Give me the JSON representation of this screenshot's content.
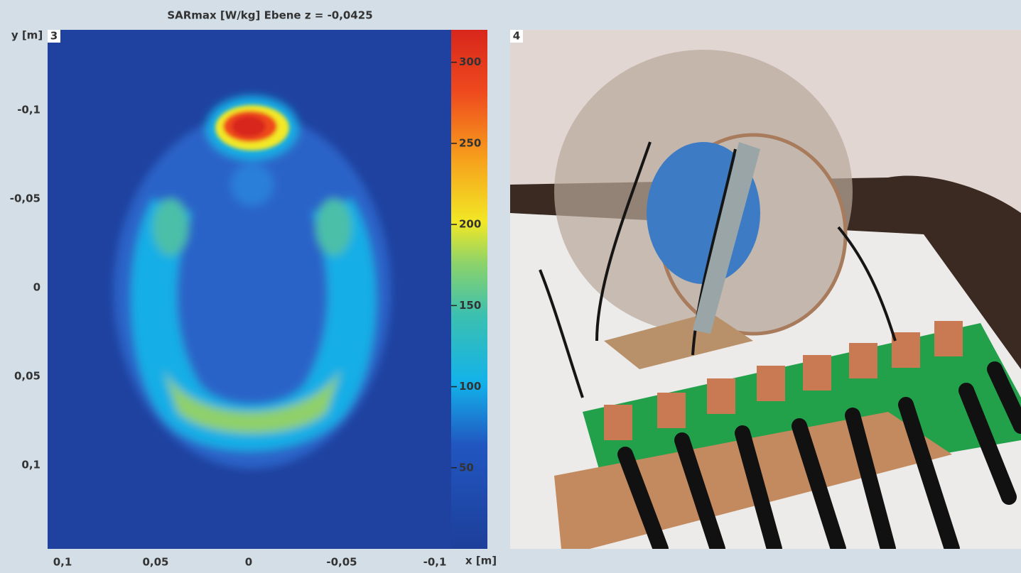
{
  "figure": {
    "title": "SARmax [W/kg] Ebene z = -0,0425",
    "panels": [
      {
        "label": "3"
      },
      {
        "label": "4"
      }
    ],
    "heatmap": {
      "y_axis_label": "y [m]",
      "x_axis_label": "x [m]",
      "yticks": [
        {
          "value": -0.1,
          "label": "-0,1"
        },
        {
          "value": -0.05,
          "label": "-0,05"
        },
        0,
        {
          "value": 0.05,
          "label": "0,05"
        },
        {
          "value": 0.1,
          "label": "0,1"
        }
      ],
      "xticks": [
        {
          "value": 0.1,
          "label": "0,1"
        },
        {
          "value": 0.05,
          "label": "0,05"
        },
        0,
        {
          "value": -0.05,
          "label": "-0,05"
        },
        {
          "value": -0.1,
          "label": "-0,1"
        }
      ],
      "colorbar_ticks": [
        50,
        100,
        150,
        200,
        250,
        300
      ]
    }
  }
}
